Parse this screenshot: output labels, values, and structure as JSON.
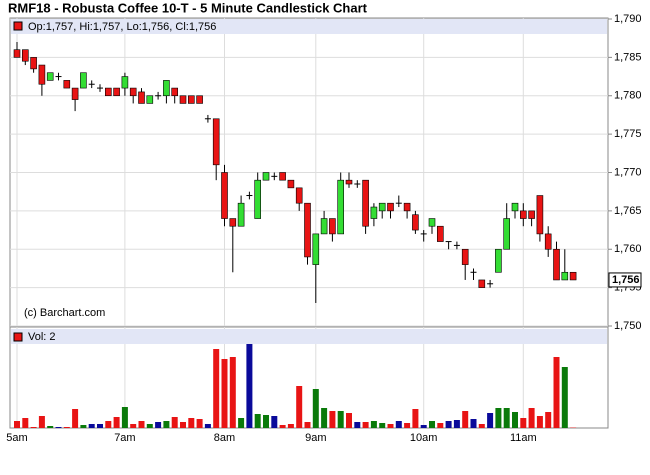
{
  "chart_data": [
    {
      "type": "candlestick",
      "title": "RMF18 - Robusta Coffee 10-T - 5 Minute Candlestick Chart",
      "legend": "Op:1,757, Hi:1,757, Lo:1,756, Cl:1,756",
      "annotation": "(c) Barchart.com",
      "last_price": {
        "value": 1756,
        "label": "1,756"
      },
      "up_color": "#33dd33",
      "down_color": "#e81414",
      "flat_color": "#000000",
      "ylim": [
        1750,
        1790
      ],
      "yticks": [
        {
          "value": 1750,
          "label": "1,750"
        },
        {
          "value": 1755,
          "label": "1,755"
        },
        {
          "value": 1760,
          "label": "1,760"
        },
        {
          "value": 1765,
          "label": "1,765"
        },
        {
          "value": 1770,
          "label": "1,770"
        },
        {
          "value": 1775,
          "label": "1,775"
        },
        {
          "value": 1780,
          "label": "1,780"
        },
        {
          "value": 1785,
          "label": "1,785"
        },
        {
          "value": 1790,
          "label": "1,790"
        }
      ],
      "grid": true,
      "open": [
        1786,
        1786,
        1785,
        1784,
        1782,
        1782.5,
        1782,
        1781,
        1781,
        1781.5,
        1781,
        1781,
        1781,
        1781,
        1781,
        1780.5,
        1779,
        1780,
        1780,
        1781,
        1780,
        1780,
        1780,
        1777,
        1777,
        1770,
        1764,
        1763,
        1767,
        1764,
        1769,
        1769.5,
        1770,
        1769,
        1768,
        1766,
        1758,
        1762,
        1764,
        1762,
        1769,
        1768.5,
        1769,
        1764,
        1765,
        1766,
        1766,
        1766,
        1764.5,
        1762,
        1763,
        1763,
        1761,
        1760.5,
        1760,
        1757,
        1756,
        1755.5,
        1757,
        1760,
        1765,
        1765,
        1765,
        1767,
        1762,
        1760,
        1756,
        1757
      ],
      "high": [
        1787,
        1786,
        1785,
        1784,
        1783,
        1783,
        1782,
        1781,
        1783,
        1782,
        1781.5,
        1781,
        1781,
        1783,
        1781,
        1781,
        1780,
        1780.5,
        1782,
        1781,
        1780,
        1780,
        1780,
        1777.5,
        1777,
        1771,
        1764,
        1767,
        1767.5,
        1770,
        1770,
        1770,
        1770,
        1769,
        1768,
        1766,
        1762,
        1765,
        1764,
        1770,
        1770,
        1769,
        1769,
        1766,
        1766,
        1766,
        1767,
        1766,
        1765,
        1762.5,
        1764,
        1763,
        1761,
        1761,
        1760,
        1757.5,
        1756,
        1756,
        1760,
        1766,
        1766,
        1766,
        1765,
        1767,
        1763,
        1761,
        1760,
        1757
      ],
      "low": [
        1785,
        1784,
        1783,
        1780,
        1782,
        1782,
        1781,
        1778,
        1781,
        1781,
        1780.5,
        1780,
        1780,
        1780,
        1779,
        1779,
        1779,
        1779.5,
        1779,
        1779,
        1779,
        1779,
        1779,
        1776.5,
        1769,
        1763,
        1757,
        1763,
        1766.5,
        1764,
        1769,
        1769,
        1769,
        1768,
        1765,
        1758,
        1753,
        1762,
        1761,
        1762,
        1768,
        1768,
        1762,
        1763,
        1764,
        1764,
        1765.5,
        1764,
        1762,
        1761,
        1762,
        1761,
        1760,
        1760,
        1756,
        1756,
        1755,
        1755,
        1757,
        1760,
        1764,
        1763,
        1763,
        1761,
        1759,
        1756,
        1756,
        1756
      ],
      "close": [
        1785,
        1784.5,
        1783.5,
        1781.5,
        1783,
        1782.5,
        1781,
        1779.5,
        1783,
        1781.5,
        1781,
        1780,
        1780,
        1782.5,
        1780,
        1779,
        1780,
        1780,
        1782,
        1780,
        1779,
        1779,
        1779,
        1777,
        1771,
        1764,
        1763,
        1766,
        1767,
        1769,
        1770,
        1769.5,
        1769,
        1768,
        1766,
        1759,
        1762,
        1764,
        1762,
        1769,
        1768.5,
        1768.5,
        1763,
        1765.5,
        1766,
        1765,
        1766,
        1765,
        1762.5,
        1762,
        1764,
        1761,
        1761,
        1760.5,
        1758,
        1757,
        1755,
        1755.5,
        1760,
        1764,
        1766,
        1764,
        1764,
        1762,
        1760,
        1756,
        1757,
        1756
      ]
    },
    {
      "type": "bar",
      "legend": "Vol: 2",
      "up_color": "#0a7a0a",
      "down_color": "#e81414",
      "flat_color": "#0a0a9a",
      "ylim": [
        0,
        505
      ],
      "categories": [
        "5am",
        null,
        null,
        null,
        null,
        null,
        null,
        null,
        null,
        null,
        null,
        null,
        null,
        "7am",
        null,
        null,
        null,
        null,
        null,
        null,
        null,
        null,
        null,
        null,
        null,
        "8am",
        null,
        null,
        null,
        null,
        null,
        null,
        null,
        null,
        null,
        null,
        "9am",
        null,
        null,
        null,
        null,
        null,
        null,
        null,
        null,
        null,
        null,
        null,
        null,
        "10am",
        null,
        null,
        null,
        null,
        null,
        null,
        null,
        null,
        null,
        null,
        null,
        "11am",
        null,
        null,
        null,
        null,
        null,
        null
      ],
      "values": [
        35,
        50,
        5,
        60,
        10,
        5,
        5,
        95,
        15,
        20,
        20,
        35,
        55,
        105,
        20,
        35,
        20,
        30,
        35,
        55,
        30,
        50,
        45,
        20,
        395,
        345,
        355,
        50,
        420,
        70,
        65,
        60,
        15,
        20,
        210,
        30,
        195,
        100,
        85,
        85,
        75,
        30,
        30,
        35,
        25,
        20,
        35,
        25,
        95,
        15,
        35,
        25,
        35,
        40,
        85,
        45,
        20,
        75,
        100,
        100,
        80,
        50,
        100,
        60,
        80,
        355,
        305,
        2
      ]
    }
  ]
}
